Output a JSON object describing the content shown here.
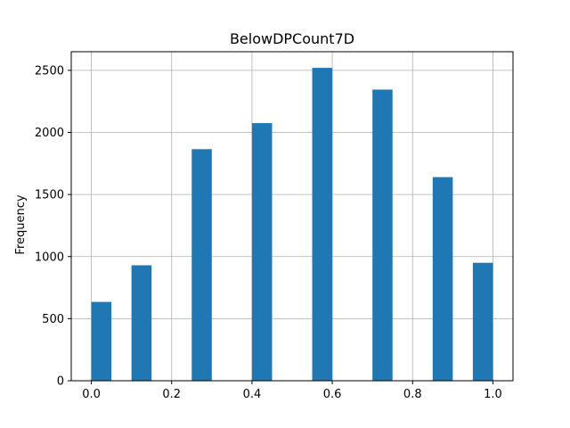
{
  "chart_data": {
    "type": "bar",
    "title": "BelowDPCount7D",
    "xlabel": "",
    "ylabel": "Frequency",
    "xlim": [
      -0.05,
      1.05
    ],
    "ylim": [
      0,
      2650
    ],
    "xticks": [
      0.0,
      0.2,
      0.4,
      0.6,
      0.8,
      1.0
    ],
    "xtick_labels": [
      "0.0",
      "0.2",
      "0.4",
      "0.6",
      "0.8",
      "1.0"
    ],
    "yticks": [
      0,
      500,
      1000,
      1500,
      2000,
      2500
    ],
    "ytick_labels": [
      "0",
      "500",
      "1000",
      "1500",
      "2000",
      "2500"
    ],
    "grid": true,
    "bar_color": "#1f77b4",
    "bins": [
      {
        "x0": 0.0,
        "x1": 0.05,
        "value": 635
      },
      {
        "x0": 0.1,
        "x1": 0.15,
        "value": 930
      },
      {
        "x0": 0.25,
        "x1": 0.3,
        "value": 1865
      },
      {
        "x0": 0.4,
        "x1": 0.45,
        "value": 2075
      },
      {
        "x0": 0.55,
        "x1": 0.6,
        "value": 2520
      },
      {
        "x0": 0.7,
        "x1": 0.75,
        "value": 2345
      },
      {
        "x0": 0.85,
        "x1": 0.9,
        "value": 1640
      },
      {
        "x0": 0.95,
        "x1": 1.0,
        "value": 950
      }
    ]
  }
}
